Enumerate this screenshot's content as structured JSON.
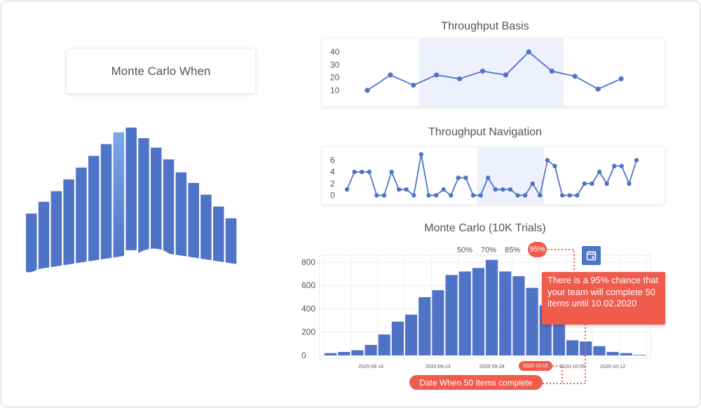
{
  "title_card": {
    "label": "Monte Carlo When"
  },
  "colors": {
    "bar": "#4f74c7",
    "bar_highlight": "#7ea8ea",
    "band": "#eef0fb",
    "accent": "#ef5b4c",
    "line": "#4f74c7"
  },
  "icons": {
    "calendar": "calendar-icon"
  },
  "logo_bars": [
    0.27,
    0.37,
    0.46,
    0.56,
    0.66,
    0.76,
    0.86,
    0.96,
    1.0,
    0.91,
    0.83,
    0.73,
    0.62,
    0.53,
    0.43,
    0.33,
    0.23
  ],
  "logo_highlight_index": 7,
  "chart_data": [
    {
      "type": "line",
      "title": "Throughput Basis",
      "yticks": [
        10,
        20,
        30,
        40
      ],
      "ylim": [
        5,
        45
      ],
      "x": [
        0,
        1,
        2,
        3,
        4,
        5,
        6,
        7,
        8,
        9,
        10,
        11
      ],
      "values": [
        10,
        22,
        14,
        22,
        19,
        25,
        22,
        40,
        25,
        21,
        11,
        19
      ],
      "band": [
        2.25,
        8.5
      ],
      "grid": false
    },
    {
      "type": "line",
      "title": "Throughput Navigation",
      "yticks": [
        0,
        2,
        4,
        6
      ],
      "ylim": [
        -1,
        7.5
      ],
      "x": [
        0,
        1,
        2,
        3,
        4,
        5,
        6,
        7,
        8,
        9,
        10,
        11,
        12,
        13,
        14,
        15,
        16,
        17,
        18,
        19,
        20,
        21,
        22,
        23,
        24,
        25,
        26,
        27,
        28,
        29,
        30,
        31,
        32,
        33,
        34,
        35,
        36,
        37,
        38,
        39
      ],
      "values": [
        1,
        4,
        4,
        4,
        0,
        0,
        4,
        1,
        1,
        0,
        7,
        0,
        0,
        1,
        0,
        3,
        3,
        0,
        0,
        3,
        1,
        1,
        1,
        0,
        0,
        2,
        0,
        6,
        5,
        0,
        0,
        0,
        2,
        2,
        4,
        2,
        5,
        5,
        2,
        6
      ],
      "band": [
        17.5,
        26.5
      ],
      "grid": false
    },
    {
      "type": "bar",
      "title": "Monte Carlo (10K Trials)",
      "yticks": [
        0,
        200,
        400,
        600,
        800
      ],
      "ylim": [
        0,
        860
      ],
      "values": [
        20,
        30,
        45,
        90,
        180,
        290,
        350,
        500,
        560,
        690,
        720,
        750,
        820,
        720,
        680,
        580,
        430,
        300,
        130,
        120,
        80,
        30,
        20,
        5
      ],
      "x_tick_labels": [
        {
          "label": "2020-09-14",
          "after_bar": 3
        },
        {
          "label": "2020-09-23",
          "after_bar": 8
        },
        {
          "label": "2020-09-28",
          "after_bar": 12
        },
        {
          "label": "2020-10-02",
          "after_bar": 15,
          "highlight": true
        },
        {
          "label": "2020-10-05",
          "after_bar": 18
        },
        {
          "label": "2020-10-12",
          "after_bar": 21
        }
      ],
      "percentiles": [
        {
          "label": "50%",
          "bar": 11
        },
        {
          "label": "70%",
          "bar": 13
        },
        {
          "label": "85%",
          "bar": 15
        },
        {
          "label": "95%",
          "bar": 17,
          "highlight": true
        }
      ],
      "grid": true
    }
  ],
  "callout": {
    "text": "There is a 95% chance that your team will complete 50 items until 10.02.2020"
  },
  "bottom_pill": {
    "text": "Date When 50 Items complete"
  }
}
